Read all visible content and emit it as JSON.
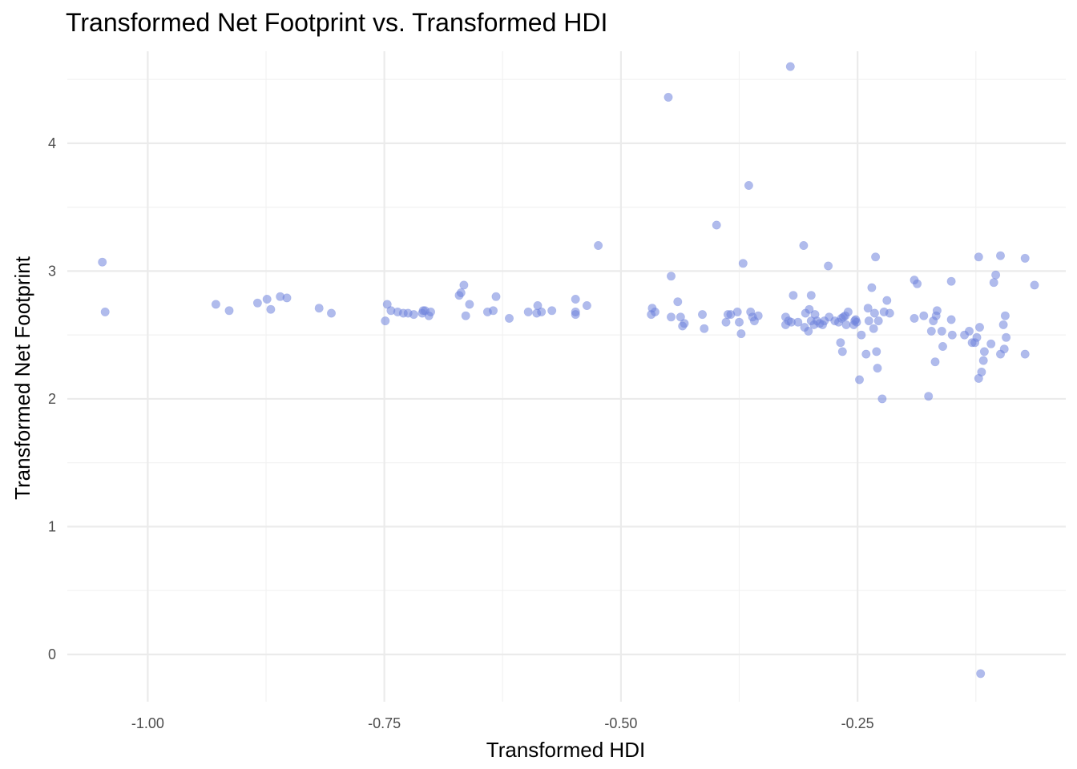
{
  "chart_data": {
    "type": "scatter",
    "title": "Transformed Net Footprint vs. Transformed HDI",
    "xlabel": "Transformed HDI",
    "ylabel": "Transformed Net Footprint",
    "xlim": [
      -1.085,
      -0.03
    ],
    "ylim": [
      -0.37,
      4.72
    ],
    "x_ticks": [
      -1.0,
      -0.75,
      -0.5,
      -0.25
    ],
    "x_tick_labels": [
      "-1.00",
      "-0.75",
      "-0.50",
      "-0.25"
    ],
    "y_ticks": [
      0,
      1,
      2,
      3,
      4
    ],
    "y_tick_labels": [
      "0",
      "1",
      "2",
      "3",
      "4"
    ],
    "grid": true,
    "point_color": "#6f84dc",
    "point_opacity": 0.55,
    "series": [
      {
        "points": [
          [
            -1.048,
            3.07
          ],
          [
            -1.045,
            2.68
          ],
          [
            -0.928,
            2.74
          ],
          [
            -0.914,
            2.69
          ],
          [
            -0.884,
            2.75
          ],
          [
            -0.874,
            2.78
          ],
          [
            -0.87,
            2.7
          ],
          [
            -0.86,
            2.8
          ],
          [
            -0.853,
            2.79
          ],
          [
            -0.819,
            2.71
          ],
          [
            -0.806,
            2.67
          ],
          [
            -0.747,
            2.74
          ],
          [
            -0.743,
            2.69
          ],
          [
            -0.736,
            2.68
          ],
          [
            -0.73,
            2.67
          ],
          [
            -0.725,
            2.67
          ],
          [
            -0.719,
            2.66
          ],
          [
            -0.749,
            2.61
          ],
          [
            -0.71,
            2.67
          ],
          [
            -0.709,
            2.69
          ],
          [
            -0.707,
            2.69
          ],
          [
            -0.703,
            2.65
          ],
          [
            -0.701,
            2.68
          ],
          [
            -0.671,
            2.81
          ],
          [
            -0.669,
            2.83
          ],
          [
            -0.666,
            2.89
          ],
          [
            -0.664,
            2.65
          ],
          [
            -0.66,
            2.74
          ],
          [
            -0.641,
            2.68
          ],
          [
            -0.635,
            2.69
          ],
          [
            -0.632,
            2.8
          ],
          [
            -0.618,
            2.63
          ],
          [
            -0.598,
            2.68
          ],
          [
            -0.589,
            2.67
          ],
          [
            -0.588,
            2.73
          ],
          [
            -0.584,
            2.68
          ],
          [
            -0.573,
            2.69
          ],
          [
            -0.548,
            2.78
          ],
          [
            -0.548,
            2.68
          ],
          [
            -0.548,
            2.66
          ],
          [
            -0.536,
            2.73
          ],
          [
            -0.524,
            3.2
          ],
          [
            -0.468,
            2.66
          ],
          [
            -0.467,
            2.71
          ],
          [
            -0.464,
            2.68
          ],
          [
            -0.45,
            4.36
          ],
          [
            -0.447,
            2.96
          ],
          [
            -0.447,
            2.64
          ],
          [
            -0.44,
            2.76
          ],
          [
            -0.437,
            2.64
          ],
          [
            -0.435,
            2.57
          ],
          [
            -0.433,
            2.59
          ],
          [
            -0.414,
            2.66
          ],
          [
            -0.412,
            2.55
          ],
          [
            -0.399,
            3.36
          ],
          [
            -0.389,
            2.6
          ],
          [
            -0.387,
            2.66
          ],
          [
            -0.384,
            2.66
          ],
          [
            -0.377,
            2.68
          ],
          [
            -0.375,
            2.6
          ],
          [
            -0.373,
            2.51
          ],
          [
            -0.371,
            3.06
          ],
          [
            -0.365,
            3.67
          ],
          [
            -0.363,
            2.68
          ],
          [
            -0.361,
            2.64
          ],
          [
            -0.359,
            2.61
          ],
          [
            -0.355,
            2.65
          ],
          [
            -0.326,
            2.64
          ],
          [
            -0.326,
            2.58
          ],
          [
            -0.323,
            2.61
          ],
          [
            -0.321,
            4.6
          ],
          [
            -0.32,
            2.6
          ],
          [
            -0.318,
            2.81
          ],
          [
            -0.313,
            2.6
          ],
          [
            -0.307,
            3.2
          ],
          [
            -0.306,
            2.56
          ],
          [
            -0.305,
            2.67
          ],
          [
            -0.302,
            2.53
          ],
          [
            -0.301,
            2.7
          ],
          [
            -0.299,
            2.81
          ],
          [
            -0.299,
            2.61
          ],
          [
            -0.296,
            2.58
          ],
          [
            -0.295,
            2.66
          ],
          [
            -0.293,
            2.61
          ],
          [
            -0.29,
            2.59
          ],
          [
            -0.287,
            2.58
          ],
          [
            -0.285,
            2.61
          ],
          [
            -0.281,
            3.04
          ],
          [
            -0.28,
            2.64
          ],
          [
            -0.274,
            2.61
          ],
          [
            -0.27,
            2.6
          ],
          [
            -0.268,
            2.44
          ],
          [
            -0.267,
            2.63
          ],
          [
            -0.266,
            2.37
          ],
          [
            -0.265,
            2.64
          ],
          [
            -0.263,
            2.65
          ],
          [
            -0.262,
            2.58
          ],
          [
            -0.26,
            2.68
          ],
          [
            -0.254,
            2.58
          ],
          [
            -0.253,
            2.61
          ],
          [
            -0.252,
            2.62
          ],
          [
            -0.251,
            2.6
          ],
          [
            -0.248,
            2.15
          ],
          [
            -0.246,
            2.5
          ],
          [
            -0.241,
            2.35
          ],
          [
            -0.239,
            2.71
          ],
          [
            -0.238,
            2.61
          ],
          [
            -0.235,
            2.87
          ],
          [
            -0.233,
            2.55
          ],
          [
            -0.232,
            2.67
          ],
          [
            -0.231,
            3.11
          ],
          [
            -0.23,
            2.37
          ],
          [
            -0.229,
            2.24
          ],
          [
            -0.228,
            2.61
          ],
          [
            -0.224,
            2.0
          ],
          [
            -0.222,
            2.68
          ],
          [
            -0.219,
            2.77
          ],
          [
            -0.216,
            2.67
          ],
          [
            -0.19,
            2.93
          ],
          [
            -0.19,
            2.63
          ],
          [
            -0.187,
            2.9
          ],
          [
            -0.18,
            2.65
          ],
          [
            -0.175,
            2.02
          ],
          [
            -0.172,
            2.53
          ],
          [
            -0.17,
            2.61
          ],
          [
            -0.168,
            2.29
          ],
          [
            -0.167,
            2.65
          ],
          [
            -0.166,
            2.69
          ],
          [
            -0.161,
            2.53
          ],
          [
            -0.16,
            2.41
          ],
          [
            -0.151,
            2.92
          ],
          [
            -0.151,
            2.62
          ],
          [
            -0.15,
            2.5
          ],
          [
            -0.137,
            2.5
          ],
          [
            -0.132,
            2.53
          ],
          [
            -0.129,
            2.44
          ],
          [
            -0.126,
            2.44
          ],
          [
            -0.124,
            2.48
          ],
          [
            -0.122,
            3.11
          ],
          [
            -0.122,
            2.16
          ],
          [
            -0.121,
            2.56
          ],
          [
            -0.12,
            -0.15
          ],
          [
            -0.119,
            2.21
          ],
          [
            -0.117,
            2.3
          ],
          [
            -0.116,
            2.37
          ],
          [
            -0.109,
            2.43
          ],
          [
            -0.106,
            2.91
          ],
          [
            -0.104,
            2.97
          ],
          [
            -0.099,
            3.12
          ],
          [
            -0.099,
            2.35
          ],
          [
            -0.096,
            2.58
          ],
          [
            -0.095,
            2.39
          ],
          [
            -0.094,
            2.65
          ],
          [
            -0.093,
            2.48
          ],
          [
            -0.073,
            3.1
          ],
          [
            -0.073,
            2.35
          ],
          [
            -0.063,
            2.89
          ]
        ]
      }
    ]
  }
}
